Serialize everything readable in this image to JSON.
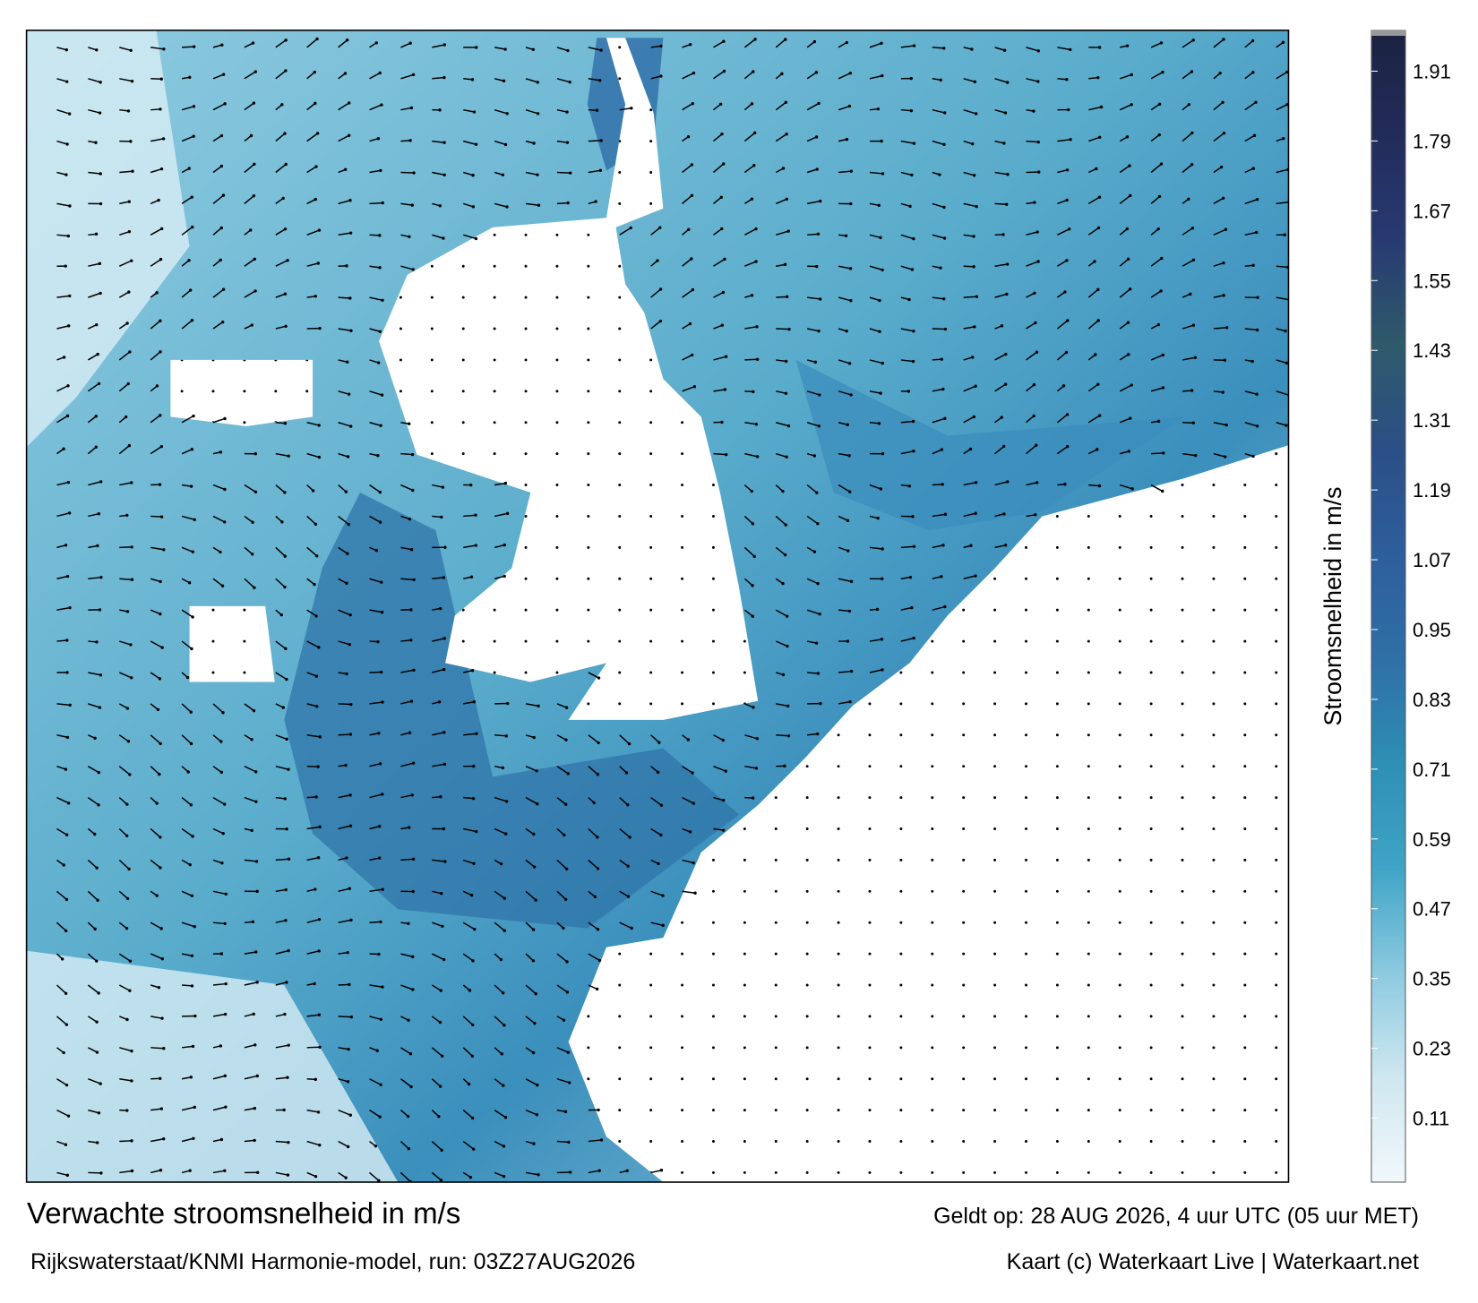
{
  "map": {
    "title": "Verwachte stroomsnelheid in m/s",
    "subtitle": "Rijkswaterstaat/KNMI Harmonie-model, run: 03Z27AUG2026",
    "valid_time": "Geldt op: 28 AUG 2026, 4 uur UTC (05 uur MET)",
    "credit": "Kaart (c) Waterkaart Live | Waterkaart.net",
    "colorbar": {
      "label": "Stroomsnelheid in m/s",
      "lim": [
        0,
        1.98
      ],
      "ticks": [
        0.11,
        0.23,
        0.35,
        0.47,
        0.59,
        0.71,
        0.83,
        0.95,
        1.07,
        1.19,
        1.31,
        1.43,
        1.55,
        1.67,
        1.79,
        1.91
      ],
      "colors": [
        "#f2f8fb",
        "#cfe7f0",
        "#8ccae0",
        "#3fa4c6",
        "#2e8fb4",
        "#2f6fa6",
        "#2d5e9c",
        "#2b4f86",
        "#2e5a6a",
        "#283a72",
        "#222c5a",
        "#1b2240"
      ]
    }
  }
}
